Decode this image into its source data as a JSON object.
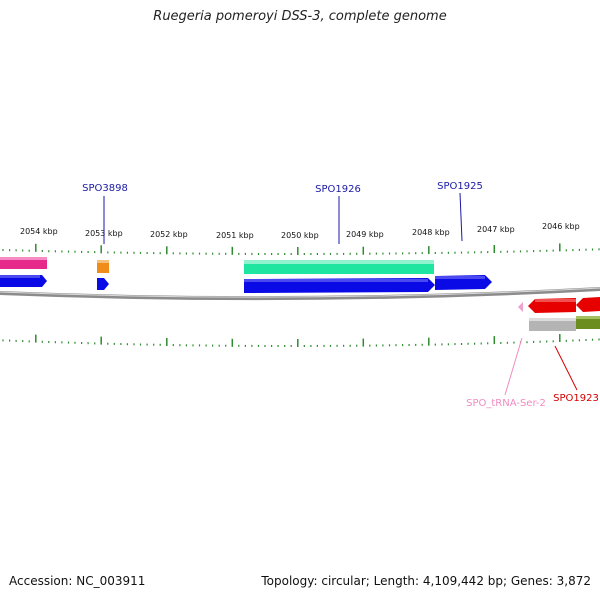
{
  "title": "Ruegeria pomeroyi DSS-3, complete genome",
  "footer": {
    "accession_label": "Accession: NC_003911",
    "summary": "Topology: circular; Length: 4,109,442 bp; Genes: 3,872"
  },
  "kbp_labels": [
    "2054 kbp",
    "2053 kbp",
    "2052 kbp",
    "2051 kbp",
    "2050 kbp",
    "2049 kbp",
    "2048 kbp",
    "2047 kbp",
    "2046 kbp"
  ],
  "gene_labels": [
    {
      "name": "SPO3898",
      "color": "#1a1aa6"
    },
    {
      "name": "SPO1926",
      "color": "#1a1aa6"
    },
    {
      "name": "SPO1925",
      "color": "#1a1aa6"
    },
    {
      "name": "SPO_tRNA-Ser-2",
      "color": "#f08cc0"
    },
    {
      "name": "SPO1923",
      "color": "#d40000"
    }
  ],
  "colors": {
    "backbone": "#8c8c8c",
    "ticks": "#2e8b2e",
    "cds_forward": "#0a0ae6",
    "cds_reverse": "#e60000",
    "pink_feature": "#e62a8c",
    "orange_feature": "#f08c1a",
    "teal_feature": "#1ee6a0",
    "gray_feature": "#b4b4b4",
    "olive_feature": "#6b8c1e",
    "trna": "#f0a0d0"
  }
}
